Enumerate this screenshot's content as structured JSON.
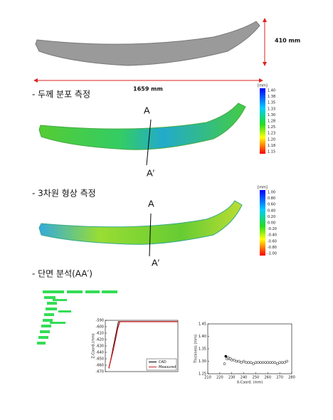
{
  "document": {
    "dim_height": "410 mm",
    "dim_width": "1659 mm",
    "section1": "- 두께 분포 측정",
    "section2": "- 3차원 형상 측정",
    "section3": "- 단면 분석(AA′)",
    "label_a1": "A",
    "label_a1p": "A′",
    "label_a2": "A",
    "label_a2p": "A′",
    "colorbar1": {
      "unit": "[mm]",
      "labels": [
        "1.40",
        "1.38",
        "1.35",
        "1.33",
        "1.30",
        "1.28",
        "1.25",
        "1.23",
        "1.20",
        "1.18",
        "1.15"
      ]
    },
    "colorbar2": {
      "unit": "[mm]",
      "labels": [
        "1.00",
        "0.80",
        "0.60",
        "0.40",
        "0.20",
        "0.00",
        "-0.20",
        "-0.40",
        "-0.60",
        "-0.80",
        "-1.00"
      ]
    }
  },
  "chart_data": [
    {
      "type": "line",
      "y_label": "Z-Coord.(mm)",
      "xlim": [
        0,
        100
      ],
      "ylim": [
        -670,
        -590
      ],
      "yticks": [
        -590,
        -600,
        -610,
        -620,
        -630,
        -640,
        -650,
        -660,
        -670
      ],
      "legend": "lower right",
      "series": [
        {
          "name": "CAD",
          "color": "#000000",
          "x": [
            5,
            18,
            100
          ],
          "values": [
            -665,
            -592,
            -592
          ]
        },
        {
          "name": "Measured",
          "color": "#cc2222",
          "x": [
            5,
            8,
            11,
            14,
            17,
            20,
            100
          ],
          "values": [
            -664,
            -650,
            -636,
            -620,
            -603,
            -592,
            -592
          ]
        }
      ]
    },
    {
      "type": "scatter",
      "x_label": "X-Coord. (mm)",
      "y_label": "Thickness (mm)",
      "xlim": [
        210,
        280
      ],
      "ylim": [
        1.25,
        1.45
      ],
      "xticks": [
        210,
        220,
        230,
        240,
        250,
        260,
        270,
        280
      ],
      "yticks": [
        {
          "value": 1.45,
          "label": "1.45"
        },
        {
          "value": 1.4,
          "label": "1.40"
        },
        {
          "value": 1.35,
          "label": "1.35"
        },
        {
          "value": 1.3,
          "label": "1.30"
        },
        {
          "value": 1.25,
          "label": "1.25"
        }
      ],
      "series": [
        {
          "name": null,
          "color": "#000000",
          "x": [
            224,
            225,
            226,
            227,
            228,
            229,
            230,
            232,
            234,
            236,
            238,
            240,
            242,
            244,
            246,
            248,
            250,
            252,
            254,
            256,
            258,
            260,
            262,
            264,
            266,
            268,
            270,
            272,
            274,
            276
          ],
          "values": [
            1.29,
            1.32,
            1.31,
            1.315,
            1.31,
            1.31,
            1.305,
            1.305,
            1.3,
            1.3,
            1.295,
            1.3,
            1.295,
            1.295,
            1.295,
            1.29,
            1.295,
            1.295,
            1.295,
            1.295,
            1.295,
            1.295,
            1.295,
            1.295,
            1.295,
            1.29,
            1.295,
            1.295,
            1.295,
            1.3
          ]
        }
      ]
    }
  ]
}
